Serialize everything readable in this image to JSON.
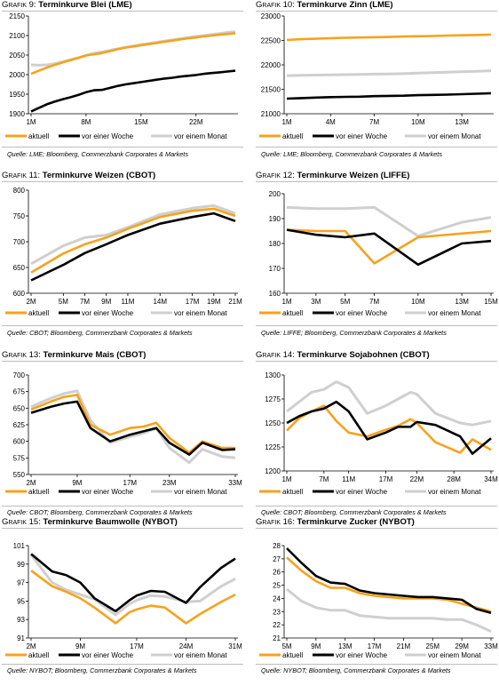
{
  "colors": {
    "aktuell": "#f7a21b",
    "woche": "#000000",
    "monat": "#cfcfcf"
  },
  "legend": [
    "aktuell",
    "vor einer Woche",
    "vor einem Monat"
  ],
  "panels": [
    {
      "label": "Grafik 9:",
      "title": "Terminkurve Blei (LME)",
      "source": "Quelle: LME; Bloomberg, Commerzbank Corporates & Markets",
      "chart_data": {
        "type": "line",
        "title": "Terminkurve Blei (LME)",
        "x": [
          1,
          2,
          3,
          4,
          5,
          6,
          7,
          8,
          9,
          10,
          11,
          12,
          13,
          14,
          15,
          16,
          17,
          18,
          19,
          20,
          21,
          22,
          23,
          24,
          25,
          26,
          27
        ],
        "xticks": [
          {
            "x": 1,
            "label": "1M"
          },
          {
            "x": 8,
            "label": "8M"
          },
          {
            "x": 15,
            "label": "15M"
          },
          {
            "x": 22,
            "label": "22M"
          }
        ],
        "ylim": [
          1900,
          2150
        ],
        "yticks": [
          1900,
          1950,
          2000,
          2050,
          2100,
          2150
        ],
        "series": [
          {
            "name": "aktuell",
            "values": [
              2002,
              2010,
              2018,
              2025,
              2031,
              2037,
              2043,
              2049,
              2052,
              2055,
              2060,
              2065,
              2069,
              2072,
              2075,
              2078,
              2081,
              2084,
              2087,
              2090,
              2093,
              2095,
              2098,
              2100,
              2102,
              2104,
              2106
            ]
          },
          {
            "name": "vor einer Woche",
            "values": [
              1906,
              1915,
              1924,
              1931,
              1937,
              1942,
              1948,
              1955,
              1960,
              1961,
              1966,
              1971,
              1975,
              1978,
              1981,
              1984,
              1987,
              1990,
              1992,
              1995,
              1997,
              1999,
              2002,
              2004,
              2006,
              2008,
              2010
            ]
          },
          {
            "name": "vor einem Monat",
            "values": [
              2025,
              2024,
              2025,
              2028,
              2033,
              2038,
              2043,
              2049,
              2055,
              2058,
              2062,
              2066,
              2070,
              2073,
              2077,
              2080,
              2083,
              2086,
              2089,
              2092,
              2095,
              2098,
              2100,
              2103,
              2105,
              2108,
              2110
            ]
          }
        ]
      }
    },
    {
      "label": "Grafik 10:",
      "title": "Terminkurve Zinn (LME)",
      "source": "Quelle: LME; Bloomberg, Commerzbank Corporates & Markets",
      "chart_data": {
        "type": "line",
        "title": "Terminkurve Zinn (LME)",
        "x": [
          1,
          2,
          3,
          4,
          5,
          6,
          7,
          8,
          9,
          10,
          11,
          12,
          13,
          14,
          15
        ],
        "xticks": [
          {
            "x": 1,
            "label": "1M"
          },
          {
            "x": 4,
            "label": "4M"
          },
          {
            "x": 7,
            "label": "7M"
          },
          {
            "x": 10,
            "label": "10M"
          },
          {
            "x": 13,
            "label": "13M"
          }
        ],
        "ylim": [
          21000,
          23000
        ],
        "yticks": [
          21000,
          21500,
          22000,
          22500,
          23000
        ],
        "series": [
          {
            "name": "aktuell",
            "values": [
              22510,
              22525,
              22535,
              22545,
              22555,
              22560,
              22565,
              22570,
              22580,
              22585,
              22590,
              22600,
              22605,
              22610,
              22620
            ]
          },
          {
            "name": "vor einer Woche",
            "values": [
              21310,
              21320,
              21330,
              21340,
              21345,
              21350,
              21360,
              21365,
              21370,
              21380,
              21385,
              21390,
              21400,
              21410,
              21420
            ]
          },
          {
            "name": "vor einem Monat",
            "values": [
              21780,
              21785,
              21790,
              21795,
              21800,
              21805,
              21810,
              21815,
              21820,
              21830,
              21840,
              21850,
              21860,
              21870,
              21880
            ]
          }
        ]
      }
    },
    {
      "label": "Grafik 11:",
      "title": "Terminkurve Weizen (CBOT)",
      "source": "Quelle: CBOT; Bloomberg, Commerzbank Corporates & Markets",
      "chart_data": {
        "type": "line",
        "title": "Terminkurve Weizen (CBOT)",
        "x": [
          2,
          5,
          7,
          9,
          11,
          14,
          17,
          19,
          21
        ],
        "xticks": [
          {
            "x": 2,
            "label": "2M"
          },
          {
            "x": 5,
            "label": "5M"
          },
          {
            "x": 7,
            "label": "7M"
          },
          {
            "x": 9,
            "label": "9M"
          },
          {
            "x": 11,
            "label": "11M"
          },
          {
            "x": 14,
            "label": "14M"
          },
          {
            "x": 17,
            "label": "17M"
          },
          {
            "x": 19,
            "label": "19M"
          },
          {
            "x": 21,
            "label": "21M"
          }
        ],
        "ylim": [
          600,
          800
        ],
        "yticks": [
          600,
          650,
          700,
          750,
          800
        ],
        "series": [
          {
            "name": "aktuell",
            "values": [
              640,
              677,
              695,
              708,
              725,
              748,
              760,
              764,
              750
            ]
          },
          {
            "name": "vor einer Woche",
            "values": [
              625,
              655,
              678,
              695,
              713,
              735,
              748,
              755,
              740
            ]
          },
          {
            "name": "vor einem Monat",
            "values": [
              657,
              692,
              708,
              713,
              728,
              753,
              765,
              770,
              755
            ]
          }
        ]
      }
    },
    {
      "label": "Grafik 12:",
      "title": "Terminkurve Weizen (LIFFE)",
      "source": "Quelle: LIFFE; Bloomberg, Commerzbank Corporates & Markets",
      "chart_data": {
        "type": "line",
        "title": "Terminkurve Weizen (LIFFE)",
        "x": [
          1,
          3,
          5,
          7,
          10,
          13,
          15
        ],
        "xticks": [
          {
            "x": 1,
            "label": "1M"
          },
          {
            "x": 3,
            "label": "3M"
          },
          {
            "x": 5,
            "label": "5M"
          },
          {
            "x": 7,
            "label": "7M"
          },
          {
            "x": 10,
            "label": "10M"
          },
          {
            "x": 13,
            "label": "13M"
          },
          {
            "x": 15,
            "label": "15M"
          }
        ],
        "ylim": [
          160,
          200
        ],
        "yticks": [
          160,
          170,
          180,
          190,
          200
        ],
        "series": [
          {
            "name": "aktuell",
            "values": [
              185.5,
              185.0,
              185.0,
              172.0,
              182.5,
              184.0,
              185.0
            ]
          },
          {
            "name": "vor einer Woche",
            "values": [
              185.5,
              183.5,
              182.5,
              184.0,
              171.5,
              180.0,
              181.0
            ]
          },
          {
            "name": "vor einem Monat",
            "values": [
              194.5,
              194.0,
              194.0,
              194.5,
              183.0,
              188.5,
              190.5
            ]
          }
        ]
      }
    },
    {
      "label": "Grafik 13:",
      "title": "Terminkurve Mais (CBOT)",
      "source": "Quelle: CBOT; Bloomberg, Commerzbank Corporates & Markets",
      "chart_data": {
        "type": "line",
        "title": "Terminkurve Mais (CBOT)",
        "x": [
          2,
          5,
          7,
          9,
          11,
          14,
          17,
          19,
          21,
          23,
          26,
          28,
          31,
          33
        ],
        "xticks": [
          {
            "x": 2,
            "label": "2M"
          },
          {
            "x": 9,
            "label": "9M"
          },
          {
            "x": 17,
            "label": "17M"
          },
          {
            "x": 23,
            "label": "23M"
          },
          {
            "x": 33,
            "label": "33M"
          }
        ],
        "ylim": [
          550,
          700
        ],
        "yticks": [
          550,
          575,
          600,
          625,
          650,
          675,
          700
        ],
        "series": [
          {
            "name": "aktuell",
            "values": [
              648,
              660,
              667,
              670,
              625,
              610,
              620,
              622,
              628,
              605,
              583,
              600,
              590,
              590
            ]
          },
          {
            "name": "vor einer Woche",
            "values": [
              643,
              652,
              657,
              660,
              620,
              600,
              610,
              615,
              620,
              598,
              580,
              598,
              587,
              588
            ]
          },
          {
            "name": "vor einem Monat",
            "values": [
              652,
              665,
              672,
              676,
              632,
              598,
              607,
              612,
              620,
              590,
              568,
              588,
              577,
              575
            ]
          }
        ]
      }
    },
    {
      "label": "Grafik 14:",
      "title": "Terminkurve Sojabohnen (CBOT)",
      "source": "Quelle: CBOT; Bloomberg, Commerzbank Corporates & Markets",
      "chart_data": {
        "type": "line",
        "title": "Terminkurve Sojabohnen (CBOT)",
        "x": [
          1,
          3,
          5,
          7,
          9,
          11,
          14,
          17,
          19,
          21,
          22,
          25,
          29,
          31,
          34
        ],
        "xticks": [
          {
            "x": 1,
            "label": "1M"
          },
          {
            "x": 7,
            "label": "7M"
          },
          {
            "x": 11,
            "label": "11M"
          },
          {
            "x": 17,
            "label": "17M"
          },
          {
            "x": 22,
            "label": "22M"
          },
          {
            "x": 28,
            "label": "28M"
          },
          {
            "x": 34,
            "label": "34M"
          }
        ],
        "ylim": [
          1200,
          1300
        ],
        "yticks": [
          1200,
          1225,
          1250,
          1275,
          1300
        ],
        "series": [
          {
            "name": "aktuell",
            "values": [
              1242,
              1255,
              1262,
              1268,
              1252,
              1240,
              1236,
              1243,
              1247,
              1254,
              1250,
              1230,
              1219,
              1233,
              1222
            ]
          },
          {
            "name": "vor einer Woche",
            "values": [
              1250,
              1257,
              1262,
              1265,
              1272,
              1262,
              1233,
              1240,
              1246,
              1246,
              1251,
              1248,
              1236,
              1218,
              1234
            ]
          },
          {
            "name": "vor einem Monat",
            "values": [
              1262,
              1272,
              1282,
              1285,
              1293,
              1287,
              1260,
              1268,
              1275,
              1282,
              1280,
              1260,
              1250,
              1248,
              1252
            ]
          }
        ]
      }
    },
    {
      "label": "Grafik 15:",
      "title": "Terminkurve Baumwolle (NYBOT)",
      "source": "Quelle: NYBOT; Bloomberg, Commerzbank Corporates & Markets",
      "chart_data": {
        "type": "line",
        "title": "Terminkurve Baumwolle (NYBOT)",
        "x": [
          2,
          5,
          7,
          9,
          11,
          14,
          16,
          17,
          19,
          21,
          24,
          26,
          29,
          31
        ],
        "xticks": [
          {
            "x": 2,
            "label": "2M"
          },
          {
            "x": 9,
            "label": "9M"
          },
          {
            "x": 17,
            "label": "17M"
          },
          {
            "x": 24,
            "label": "24M"
          },
          {
            "x": 31,
            "label": "31M"
          }
        ],
        "ylim": [
          91,
          101
        ],
        "yticks": [
          91,
          93,
          95,
          97,
          99,
          101
        ],
        "series": [
          {
            "name": "aktuell",
            "values": [
              98.3,
              96.6,
              96.0,
              95.3,
              94.3,
              92.6,
              93.8,
              94.1,
              94.5,
              94.3,
              92.6,
              93.6,
              94.9,
              95.7
            ]
          },
          {
            "name": "vor einer Woche",
            "values": [
              100.1,
              98.2,
              97.8,
              97.0,
              95.3,
              93.9,
              95.1,
              95.6,
              96.1,
              96.0,
              94.8,
              96.5,
              98.6,
              99.6
            ]
          },
          {
            "name": "vor einem Monat",
            "values": [
              100.0,
              97.0,
              96.2,
              95.7,
              95.2,
              93.5,
              94.7,
              95.1,
              95.6,
              95.5,
              94.9,
              95.0,
              96.6,
              97.4
            ]
          }
        ]
      }
    },
    {
      "label": "Grafik 16:",
      "title": "Terminkurve Zucker (NYBOT)",
      "source": "Quelle: NYBOT; Bloomberg, Commerzbank Corporates & Markets",
      "chart_data": {
        "type": "line",
        "title": "Terminkurve Zucker (NYBOT)",
        "x": [
          5,
          7,
          9,
          11,
          13,
          15,
          17,
          19,
          21,
          23,
          25,
          27,
          29,
          31,
          33
        ],
        "xticks": [
          {
            "x": 5,
            "label": "5M"
          },
          {
            "x": 9,
            "label": "9M"
          },
          {
            "x": 13,
            "label": "13M"
          },
          {
            "x": 17,
            "label": "17M"
          },
          {
            "x": 21,
            "label": "21M"
          },
          {
            "x": 25,
            "label": "25M"
          },
          {
            "x": 29,
            "label": "29M"
          },
          {
            "x": 33,
            "label": "33M"
          }
        ],
        "ylim": [
          21,
          28
        ],
        "yticks": [
          21,
          22,
          23,
          24,
          25,
          26,
          27,
          28
        ],
        "series": [
          {
            "name": "aktuell",
            "values": [
              27.1,
              26.1,
              25.3,
              24.8,
              24.8,
              24.4,
              24.2,
              24.1,
              24.0,
              24.0,
              24.0,
              23.9,
              23.6,
              23.3,
              23.0
            ]
          },
          {
            "name": "vor einer Woche",
            "values": [
              27.8,
              26.7,
              25.7,
              25.2,
              25.1,
              24.6,
              24.4,
              24.3,
              24.2,
              24.1,
              24.1,
              24.0,
              23.9,
              23.2,
              22.9
            ]
          },
          {
            "name": "vor einem Monat",
            "values": [
              24.7,
              23.8,
              23.3,
              23.1,
              23.1,
              22.7,
              22.6,
              22.5,
              22.5,
              22.5,
              22.5,
              22.4,
              22.4,
              22.0,
              21.5
            ]
          }
        ]
      }
    }
  ]
}
